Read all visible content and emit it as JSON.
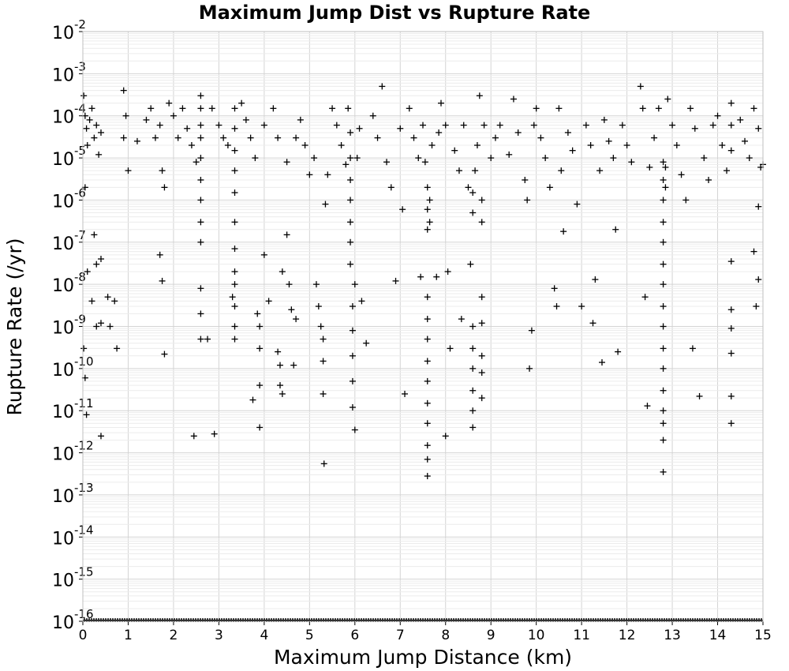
{
  "chart_data": {
    "type": "scatter",
    "title": "Maximum Jump Dist vs Rupture Rate",
    "xlabel": "Maximum Jump Distance (km)",
    "ylabel": "Rupture Rate (/yr)",
    "xlim": [
      0,
      15
    ],
    "ylim": [
      1e-16,
      0.01
    ],
    "y_scale": "log",
    "grid": true,
    "marker": "plus",
    "marker_color": "#000000",
    "x_ticks": [
      "0",
      "1",
      "2",
      "3",
      "4",
      "5",
      "6",
      "7",
      "8",
      "9",
      "10",
      "11",
      "12",
      "13",
      "14",
      "15"
    ],
    "y_ticks": [
      {
        "base": "10",
        "exp": "-2"
      },
      {
        "base": "10",
        "exp": "-3"
      },
      {
        "base": "10",
        "exp": "-4"
      },
      {
        "base": "10",
        "exp": "-5"
      },
      {
        "base": "10",
        "exp": "-6"
      },
      {
        "base": "10",
        "exp": "-7"
      },
      {
        "base": "10",
        "exp": "-8"
      },
      {
        "base": "10",
        "exp": "-9"
      },
      {
        "base": "10",
        "exp": "-10"
      },
      {
        "base": "10",
        "exp": "-11"
      },
      {
        "base": "10",
        "exp": "-12"
      },
      {
        "base": "10",
        "exp": "-13"
      },
      {
        "base": "10",
        "exp": "-14"
      },
      {
        "base": "10",
        "exp": "-15"
      },
      {
        "base": "10",
        "exp": "-16"
      }
    ],
    "points": [
      [
        0.02,
        0.0003
      ],
      [
        0.05,
        0.0001
      ],
      [
        0.08,
        5e-05
      ],
      [
        0.1,
        2e-05
      ],
      [
        0.15,
        8e-05
      ],
      [
        0.2,
        0.00015
      ],
      [
        0.25,
        3e-05
      ],
      [
        0.3,
        6e-05
      ],
      [
        0.35,
        1.2e-05
      ],
      [
        0.4,
        4e-05
      ],
      [
        0.05,
        2e-06
      ],
      [
        0.1,
        2e-08
      ],
      [
        0.2,
        4e-09
      ],
      [
        0.3,
        1e-09
      ],
      [
        0.4,
        1.2e-09
      ],
      [
        0.02,
        3e-10
      ],
      [
        0.05,
        6e-11
      ],
      [
        0.08,
        8e-12
      ],
      [
        0.4,
        2.5e-12
      ],
      [
        0.3,
        3e-08
      ],
      [
        0.25,
        1.5e-07
      ],
      [
        0.4,
        4e-08
      ],
      [
        0.6,
        1e-09
      ],
      [
        0.75,
        3e-10
      ],
      [
        0.55,
        5e-09
      ],
      [
        0.7,
        4e-09
      ],
      [
        0.9,
        3e-05
      ],
      [
        0.95,
        0.0001
      ],
      [
        1.0,
        5e-06
      ],
      [
        0.9,
        0.0004
      ],
      [
        1.2,
        2.5e-05
      ],
      [
        1.4,
        8e-05
      ],
      [
        1.5,
        0.00015
      ],
      [
        1.6,
        3e-05
      ],
      [
        1.7,
        6e-05
      ],
      [
        1.75,
        5e-06
      ],
      [
        1.8,
        2e-06
      ],
      [
        1.7,
        5e-08
      ],
      [
        1.75,
        1.2e-08
      ],
      [
        1.8,
        2.2e-10
      ],
      [
        1.9,
        0.0002
      ],
      [
        2.0,
        0.0001
      ],
      [
        2.1,
        3e-05
      ],
      [
        2.2,
        0.00015
      ],
      [
        2.3,
        5e-05
      ],
      [
        2.4,
        2e-05
      ],
      [
        2.45,
        2.5e-12
      ],
      [
        2.5,
        8e-06
      ],
      [
        2.6,
        0.0003
      ],
      [
        2.6,
        0.00015
      ],
      [
        2.6,
        6e-05
      ],
      [
        2.6,
        3e-05
      ],
      [
        2.6,
        1e-05
      ],
      [
        2.6,
        3e-06
      ],
      [
        2.6,
        1e-06
      ],
      [
        2.6,
        3e-07
      ],
      [
        2.6,
        1e-07
      ],
      [
        2.6,
        8e-09
      ],
      [
        2.6,
        2e-09
      ],
      [
        2.6,
        5e-10
      ],
      [
        2.75,
        5e-10
      ],
      [
        2.85,
        0.00015
      ],
      [
        2.9,
        2.8e-12
      ],
      [
        3.0,
        6e-05
      ],
      [
        3.1,
        3e-05
      ],
      [
        3.2,
        2e-05
      ],
      [
        3.3,
        5e-09
      ],
      [
        3.35,
        0.00015
      ],
      [
        3.35,
        5e-05
      ],
      [
        3.35,
        1.5e-05
      ],
      [
        3.35,
        5e-06
      ],
      [
        3.35,
        1.5e-06
      ],
      [
        3.35,
        3e-07
      ],
      [
        3.35,
        7e-08
      ],
      [
        3.35,
        2e-08
      ],
      [
        3.35,
        1e-08
      ],
      [
        3.35,
        3e-09
      ],
      [
        3.35,
        1e-09
      ],
      [
        3.35,
        5e-10
      ],
      [
        3.5,
        0.0002
      ],
      [
        3.6,
        8e-05
      ],
      [
        3.7,
        3e-05
      ],
      [
        3.75,
        1.8e-11
      ],
      [
        3.8,
        1e-05
      ],
      [
        3.85,
        2e-09
      ],
      [
        3.9,
        4e-11
      ],
      [
        3.9,
        4e-12
      ],
      [
        3.9,
        1e-09
      ],
      [
        3.9,
        3e-10
      ],
      [
        4.0,
        6e-05
      ],
      [
        4.0,
        5e-08
      ],
      [
        4.1,
        4e-09
      ],
      [
        4.2,
        0.00015
      ],
      [
        4.3,
        3e-05
      ],
      [
        4.3,
        2.5e-10
      ],
      [
        4.35,
        1.2e-10
      ],
      [
        4.35,
        4e-11
      ],
      [
        4.4,
        2.5e-11
      ],
      [
        4.4,
        2e-08
      ],
      [
        4.5,
        8e-06
      ],
      [
        4.5,
        1.5e-07
      ],
      [
        4.55,
        1e-08
      ],
      [
        4.6,
        2.5e-09
      ],
      [
        4.65,
        1.2e-10
      ],
      [
        4.7,
        1.5e-09
      ],
      [
        4.7,
        3e-05
      ],
      [
        4.8,
        8e-05
      ],
      [
        4.9,
        2e-05
      ],
      [
        5.0,
        4e-06
      ],
      [
        5.1,
        1e-05
      ],
      [
        5.15,
        1e-08
      ],
      [
        5.2,
        3e-09
      ],
      [
        5.25,
        1e-09
      ],
      [
        5.3,
        2.5e-11
      ],
      [
        5.3,
        1.5e-10
      ],
      [
        5.3,
        5e-10
      ],
      [
        5.32,
        5.5e-13
      ],
      [
        5.35,
        8e-07
      ],
      [
        5.4,
        4e-06
      ],
      [
        5.5,
        0.00015
      ],
      [
        5.6,
        6e-05
      ],
      [
        5.7,
        2e-05
      ],
      [
        5.8,
        7e-06
      ],
      [
        5.85,
        0.00015
      ],
      [
        5.9,
        4e-05
      ],
      [
        5.9,
        1e-05
      ],
      [
        5.9,
        3e-06
      ],
      [
        5.9,
        1e-06
      ],
      [
        5.9,
        3e-07
      ],
      [
        5.9,
        1e-07
      ],
      [
        5.9,
        3e-08
      ],
      [
        5.95,
        1.2e-11
      ],
      [
        5.95,
        5e-11
      ],
      [
        5.95,
        2e-10
      ],
      [
        5.95,
        8e-10
      ],
      [
        5.95,
        3e-09
      ],
      [
        6.0,
        1e-08
      ],
      [
        6.0,
        3.5e-12
      ],
      [
        6.05,
        1e-05
      ],
      [
        6.1,
        5e-05
      ],
      [
        6.15,
        4e-09
      ],
      [
        6.25,
        4e-10
      ],
      [
        6.4,
        0.0001
      ],
      [
        6.5,
        3e-05
      ],
      [
        6.6,
        0.0005
      ],
      [
        6.7,
        8e-06
      ],
      [
        6.8,
        2e-06
      ],
      [
        6.9,
        1.2e-08
      ],
      [
        7.0,
        5e-05
      ],
      [
        7.05,
        6e-07
      ],
      [
        7.1,
        2.5e-11
      ],
      [
        7.2,
        0.00015
      ],
      [
        7.3,
        3e-05
      ],
      [
        7.4,
        1e-05
      ],
      [
        7.45,
        1.5e-08
      ],
      [
        7.5,
        6e-05
      ],
      [
        7.55,
        8e-06
      ],
      [
        7.6,
        2e-06
      ],
      [
        7.6,
        6e-07
      ],
      [
        7.6,
        2e-07
      ],
      [
        7.6,
        5e-09
      ],
      [
        7.6,
        1.5e-09
      ],
      [
        7.6,
        5e-10
      ],
      [
        7.6,
        1.5e-10
      ],
      [
        7.6,
        5e-11
      ],
      [
        7.6,
        1.5e-11
      ],
      [
        7.6,
        5e-12
      ],
      [
        7.6,
        1.5e-12
      ],
      [
        7.6,
        7e-13
      ],
      [
        7.6,
        2.8e-13
      ],
      [
        7.65,
        1e-06
      ],
      [
        7.65,
        3e-07
      ],
      [
        7.7,
        2e-05
      ],
      [
        7.8,
        1.5e-08
      ],
      [
        7.85,
        4e-05
      ],
      [
        7.9,
        0.0002
      ],
      [
        8.0,
        2.5e-12
      ],
      [
        8.0,
        6e-05
      ],
      [
        8.05,
        2e-08
      ],
      [
        8.1,
        3e-10
      ],
      [
        8.2,
        1.5e-05
      ],
      [
        8.3,
        5e-06
      ],
      [
        8.35,
        1.5e-09
      ],
      [
        8.4,
        6e-05
      ],
      [
        8.5,
        2e-06
      ],
      [
        8.55,
        3e-08
      ],
      [
        8.6,
        4e-12
      ],
      [
        8.6,
        1e-11
      ],
      [
        8.6,
        3e-11
      ],
      [
        8.6,
        1e-10
      ],
      [
        8.6,
        3e-10
      ],
      [
        8.6,
        1e-09
      ],
      [
        8.6,
        1.5e-06
      ],
      [
        8.6,
        5e-07
      ],
      [
        8.65,
        5e-06
      ],
      [
        8.7,
        2e-05
      ],
      [
        8.75,
        0.0003
      ],
      [
        8.8,
        1e-06
      ],
      [
        8.8,
        3e-07
      ],
      [
        8.8,
        5e-09
      ],
      [
        8.8,
        1.2e-09
      ],
      [
        8.8,
        2e-10
      ],
      [
        8.8,
        8e-11
      ],
      [
        8.8,
        2e-11
      ],
      [
        8.85,
        6e-05
      ],
      [
        9.0,
        1e-05
      ],
      [
        9.1,
        3e-05
      ],
      [
        9.2,
        6e-05
      ],
      [
        9.4,
        1.2e-05
      ],
      [
        9.5,
        0.00025
      ],
      [
        9.6,
        4e-05
      ],
      [
        9.75,
        3e-06
      ],
      [
        9.8,
        1e-06
      ],
      [
        9.85,
        1e-10
      ],
      [
        9.9,
        8e-10
      ],
      [
        9.95,
        6e-05
      ],
      [
        10.0,
        0.00015
      ],
      [
        10.1,
        3e-05
      ],
      [
        10.2,
        1e-05
      ],
      [
        10.3,
        2e-06
      ],
      [
        10.4,
        8e-09
      ],
      [
        10.45,
        3e-09
      ],
      [
        10.5,
        0.00015
      ],
      [
        10.55,
        5e-06
      ],
      [
        10.6,
        1.8e-07
      ],
      [
        10.7,
        4e-05
      ],
      [
        10.8,
        1.5e-05
      ],
      [
        10.9,
        8e-07
      ],
      [
        11.0,
        3e-09
      ],
      [
        11.1,
        6e-05
      ],
      [
        11.2,
        2e-05
      ],
      [
        11.25,
        1.2e-09
      ],
      [
        11.3,
        1.3e-08
      ],
      [
        11.4,
        5e-06
      ],
      [
        11.45,
        1.4e-10
      ],
      [
        11.5,
        8e-05
      ],
      [
        11.6,
        2.5e-05
      ],
      [
        11.7,
        1e-05
      ],
      [
        11.75,
        2e-07
      ],
      [
        11.8,
        2.5e-10
      ],
      [
        11.9,
        6e-05
      ],
      [
        12.0,
        2e-05
      ],
      [
        12.1,
        8e-06
      ],
      [
        12.3,
        0.0005
      ],
      [
        12.35,
        0.00015
      ],
      [
        12.4,
        5e-09
      ],
      [
        12.45,
        1.3e-11
      ],
      [
        12.5,
        6e-06
      ],
      [
        12.6,
        3e-05
      ],
      [
        12.7,
        0.00015
      ],
      [
        12.8,
        8e-06
      ],
      [
        12.8,
        3e-06
      ],
      [
        12.8,
        1e-06
      ],
      [
        12.8,
        3e-07
      ],
      [
        12.8,
        1e-07
      ],
      [
        12.8,
        3e-08
      ],
      [
        12.8,
        1e-08
      ],
      [
        12.8,
        3e-09
      ],
      [
        12.8,
        1e-09
      ],
      [
        12.8,
        3e-10
      ],
      [
        12.8,
        1e-10
      ],
      [
        12.8,
        3e-11
      ],
      [
        12.8,
        1e-11
      ],
      [
        12.8,
        5e-12
      ],
      [
        12.8,
        2e-12
      ],
      [
        12.8,
        3.5e-13
      ],
      [
        12.85,
        6e-06
      ],
      [
        12.85,
        2e-06
      ],
      [
        12.9,
        0.00025
      ],
      [
        13.0,
        6e-05
      ],
      [
        13.1,
        2e-05
      ],
      [
        13.2,
        4e-06
      ],
      [
        13.3,
        1e-06
      ],
      [
        13.4,
        0.00015
      ],
      [
        13.45,
        3e-10
      ],
      [
        13.5,
        5e-05
      ],
      [
        13.6,
        2.2e-11
      ],
      [
        13.7,
        1e-05
      ],
      [
        13.8,
        3e-06
      ],
      [
        13.9,
        6e-05
      ],
      [
        14.0,
        0.0001
      ],
      [
        14.1,
        2e-05
      ],
      [
        14.2,
        5e-06
      ],
      [
        14.3,
        0.0002
      ],
      [
        14.3,
        6e-05
      ],
      [
        14.3,
        1.5e-05
      ],
      [
        14.3,
        3.5e-08
      ],
      [
        14.3,
        2.5e-09
      ],
      [
        14.3,
        9e-10
      ],
      [
        14.3,
        2.3e-10
      ],
      [
        14.3,
        2.2e-11
      ],
      [
        14.3,
        5e-12
      ],
      [
        14.5,
        8e-05
      ],
      [
        14.6,
        2.5e-05
      ],
      [
        14.7,
        1e-05
      ],
      [
        14.8,
        6e-08
      ],
      [
        14.85,
        3e-09
      ],
      [
        14.9,
        7e-07
      ],
      [
        14.9,
        1.3e-08
      ],
      [
        14.95,
        6e-06
      ],
      [
        14.8,
        0.00015
      ],
      [
        14.9,
        5e-05
      ],
      [
        15.0,
        7e-06
      ]
    ]
  }
}
